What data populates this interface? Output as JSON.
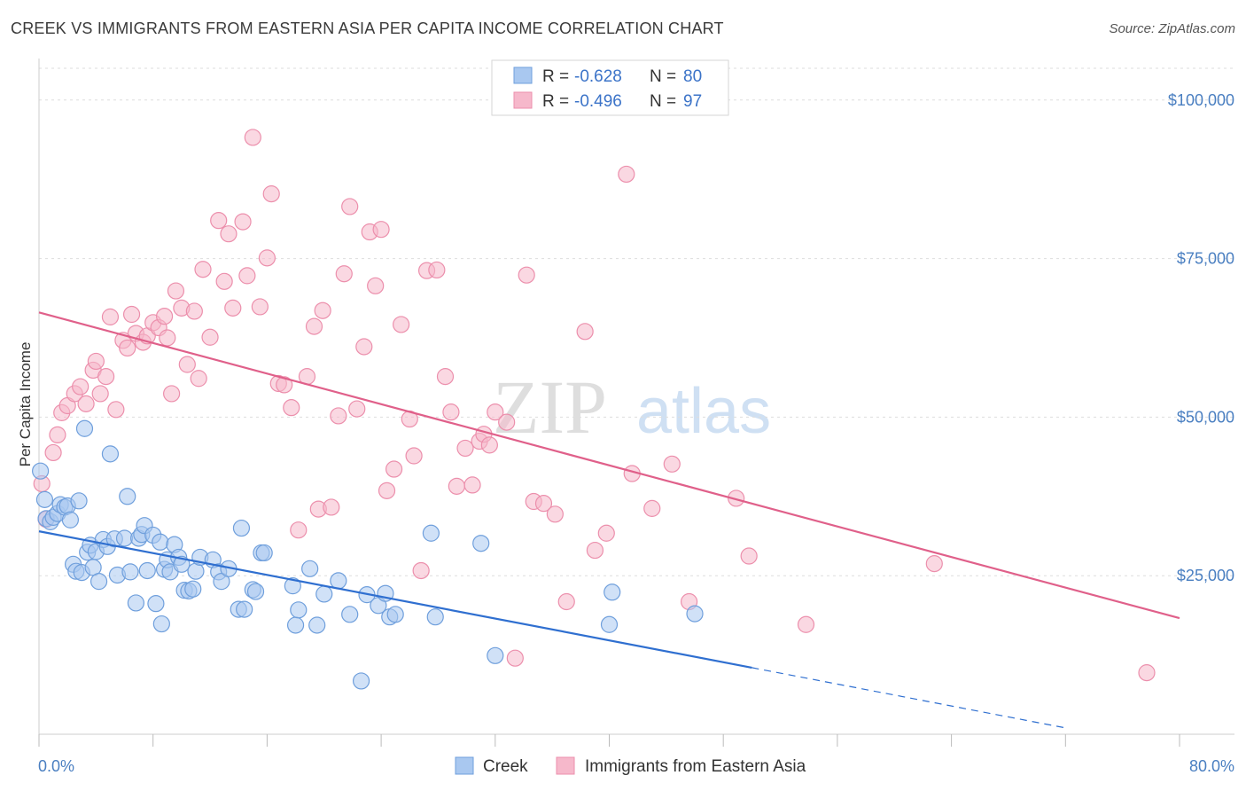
{
  "header": {
    "title": "CREEK VS IMMIGRANTS FROM EASTERN ASIA PER CAPITA INCOME CORRELATION CHART",
    "source": "Source: ZipAtlas.com"
  },
  "legend_top": {
    "rows": [
      {
        "r_label": "R =",
        "r_value": "-0.628",
        "n_label": "N =",
        "n_value": "80"
      },
      {
        "r_label": "R =",
        "r_value": "-0.496",
        "n_label": "N =",
        "n_value": "97"
      }
    ]
  },
  "legend_bottom": {
    "items": [
      "Creek",
      "Immigrants from Eastern Asia"
    ]
  },
  "watermark": {
    "zip": "ZIP",
    "atlas": "atlas"
  },
  "colors": {
    "creek_fill": "#a9c8f0",
    "creek_stroke": "#6f9fdc",
    "creek_line": "#2f6fd0",
    "asia_fill": "#f6b8cb",
    "asia_stroke": "#ec8fac",
    "asia_line": "#e0608a",
    "tick_label": "#4a7fc1",
    "grid": "#dddddd"
  },
  "chart_data": {
    "type": "scatter",
    "title": "CREEK VS IMMIGRANTS FROM EASTERN ASIA PER CAPITA INCOME CORRELATION CHART",
    "xlabel": "",
    "ylabel": "Per Capita Income",
    "xlim": [
      0,
      80
    ],
    "ylim": [
      0,
      105000
    ],
    "x_tick_labels": [
      "0.0%",
      "80.0%"
    ],
    "y_ticks": [
      25000,
      50000,
      75000,
      100000
    ],
    "y_tick_labels": [
      "$25,000",
      "$50,000",
      "$75,000",
      "$100,000"
    ],
    "grid": true,
    "legend_position": "top-center",
    "series": [
      {
        "name": "Creek",
        "r": -0.628,
        "n": 80,
        "trend": {
          "x": [
            0,
            50
          ],
          "y": [
            32000,
            10500
          ],
          "dashed_to": [
            72,
            1000
          ]
        },
        "points": [
          [
            0.1,
            41500
          ],
          [
            0.4,
            37000
          ],
          [
            0.5,
            34000
          ],
          [
            0.8,
            33500
          ],
          [
            1.0,
            34200
          ],
          [
            1.3,
            34800
          ],
          [
            1.5,
            36200
          ],
          [
            1.8,
            35800
          ],
          [
            2.0,
            36000
          ],
          [
            2.2,
            33800
          ],
          [
            2.4,
            26800
          ],
          [
            2.6,
            25700
          ],
          [
            2.8,
            36800
          ],
          [
            3.0,
            25500
          ],
          [
            3.2,
            48200
          ],
          [
            3.4,
            28700
          ],
          [
            3.6,
            29800
          ],
          [
            3.8,
            26300
          ],
          [
            4.0,
            28800
          ],
          [
            4.2,
            24100
          ],
          [
            4.5,
            30700
          ],
          [
            4.8,
            29600
          ],
          [
            5.0,
            44200
          ],
          [
            5.3,
            30800
          ],
          [
            5.5,
            25100
          ],
          [
            6.0,
            30900
          ],
          [
            6.2,
            37500
          ],
          [
            6.4,
            25600
          ],
          [
            6.8,
            20700
          ],
          [
            7.0,
            30900
          ],
          [
            7.2,
            31500
          ],
          [
            7.4,
            32900
          ],
          [
            7.6,
            25800
          ],
          [
            8.0,
            31400
          ],
          [
            8.2,
            20600
          ],
          [
            8.5,
            30300
          ],
          [
            8.6,
            17400
          ],
          [
            8.8,
            26000
          ],
          [
            9.0,
            27500
          ],
          [
            9.2,
            25600
          ],
          [
            9.5,
            29900
          ],
          [
            9.8,
            27900
          ],
          [
            10.0,
            26800
          ],
          [
            10.2,
            22700
          ],
          [
            10.5,
            22600
          ],
          [
            10.8,
            22900
          ],
          [
            11.0,
            25700
          ],
          [
            11.3,
            27900
          ],
          [
            12.2,
            27500
          ],
          [
            12.6,
            25600
          ],
          [
            12.8,
            24100
          ],
          [
            13.3,
            26100
          ],
          [
            14.0,
            19700
          ],
          [
            14.2,
            32500
          ],
          [
            14.4,
            19700
          ],
          [
            15.0,
            22800
          ],
          [
            15.2,
            22500
          ],
          [
            15.6,
            28600
          ],
          [
            15.8,
            28600
          ],
          [
            17.8,
            23400
          ],
          [
            18.0,
            17200
          ],
          [
            18.2,
            19600
          ],
          [
            19.0,
            26100
          ],
          [
            19.5,
            17200
          ],
          [
            20.0,
            22100
          ],
          [
            21.0,
            24200
          ],
          [
            21.8,
            18900
          ],
          [
            22.6,
            8400
          ],
          [
            23.0,
            22000
          ],
          [
            23.8,
            20300
          ],
          [
            24.3,
            22200
          ],
          [
            24.6,
            18500
          ],
          [
            25.0,
            18900
          ],
          [
            27.5,
            31700
          ],
          [
            27.8,
            18500
          ],
          [
            31.0,
            30100
          ],
          [
            32.0,
            12400
          ],
          [
            40.0,
            17300
          ],
          [
            40.2,
            22400
          ],
          [
            46.0,
            19000
          ]
        ]
      },
      {
        "name": "Immigrants from Eastern Asia",
        "r": -0.496,
        "n": 97,
        "trend": {
          "x": [
            0,
            80
          ],
          "y": [
            66500,
            18300
          ]
        },
        "points": [
          [
            0.2,
            39500
          ],
          [
            0.5,
            33900
          ],
          [
            1.0,
            44400
          ],
          [
            1.3,
            47200
          ],
          [
            1.6,
            50700
          ],
          [
            2.0,
            51800
          ],
          [
            2.5,
            53700
          ],
          [
            2.9,
            54800
          ],
          [
            3.3,
            52100
          ],
          [
            3.8,
            57400
          ],
          [
            4.0,
            58800
          ],
          [
            4.3,
            53700
          ],
          [
            4.7,
            56400
          ],
          [
            5.0,
            65800
          ],
          [
            5.4,
            51200
          ],
          [
            5.9,
            62100
          ],
          [
            6.2,
            60900
          ],
          [
            6.5,
            66200
          ],
          [
            6.8,
            63200
          ],
          [
            7.3,
            61800
          ],
          [
            7.6,
            62800
          ],
          [
            8.0,
            64900
          ],
          [
            8.4,
            64100
          ],
          [
            8.8,
            65900
          ],
          [
            9.0,
            62500
          ],
          [
            9.3,
            53700
          ],
          [
            9.6,
            69900
          ],
          [
            10.0,
            67200
          ],
          [
            10.4,
            58300
          ],
          [
            10.9,
            66700
          ],
          [
            11.2,
            56100
          ],
          [
            11.5,
            73300
          ],
          [
            12.0,
            62600
          ],
          [
            12.6,
            81000
          ],
          [
            13.0,
            71400
          ],
          [
            13.3,
            78900
          ],
          [
            13.6,
            67200
          ],
          [
            14.3,
            80800
          ],
          [
            14.6,
            72300
          ],
          [
            15.0,
            94100
          ],
          [
            15.5,
            67400
          ],
          [
            16.0,
            75100
          ],
          [
            16.3,
            85200
          ],
          [
            16.8,
            55300
          ],
          [
            17.2,
            55100
          ],
          [
            17.7,
            51500
          ],
          [
            18.2,
            32200
          ],
          [
            18.8,
            56400
          ],
          [
            19.3,
            64300
          ],
          [
            19.6,
            35500
          ],
          [
            19.9,
            66800
          ],
          [
            20.5,
            35800
          ],
          [
            21.0,
            50200
          ],
          [
            21.4,
            72600
          ],
          [
            21.8,
            83200
          ],
          [
            22.3,
            51300
          ],
          [
            22.8,
            61100
          ],
          [
            23.2,
            79200
          ],
          [
            23.6,
            70700
          ],
          [
            24.0,
            79600
          ],
          [
            24.4,
            38400
          ],
          [
            24.9,
            41800
          ],
          [
            25.4,
            64600
          ],
          [
            26.0,
            49700
          ],
          [
            26.3,
            43900
          ],
          [
            26.8,
            25800
          ],
          [
            27.2,
            73100
          ],
          [
            27.9,
            73200
          ],
          [
            28.5,
            56400
          ],
          [
            28.9,
            50800
          ],
          [
            29.3,
            39100
          ],
          [
            29.9,
            45100
          ],
          [
            30.4,
            39300
          ],
          [
            30.9,
            46200
          ],
          [
            31.2,
            47300
          ],
          [
            31.6,
            45600
          ],
          [
            32.0,
            50800
          ],
          [
            32.8,
            49200
          ],
          [
            33.4,
            12000
          ],
          [
            34.2,
            72400
          ],
          [
            34.7,
            36700
          ],
          [
            35.4,
            36400
          ],
          [
            36.2,
            34700
          ],
          [
            37.0,
            20900
          ],
          [
            38.3,
            63500
          ],
          [
            39.0,
            29000
          ],
          [
            39.8,
            31700
          ],
          [
            41.2,
            88300
          ],
          [
            41.6,
            41100
          ],
          [
            43.0,
            35600
          ],
          [
            44.4,
            42600
          ],
          [
            45.6,
            20900
          ],
          [
            48.9,
            37200
          ],
          [
            49.8,
            28100
          ],
          [
            53.8,
            17300
          ],
          [
            62.8,
            26900
          ],
          [
            77.7,
            9700
          ]
        ]
      }
    ]
  }
}
